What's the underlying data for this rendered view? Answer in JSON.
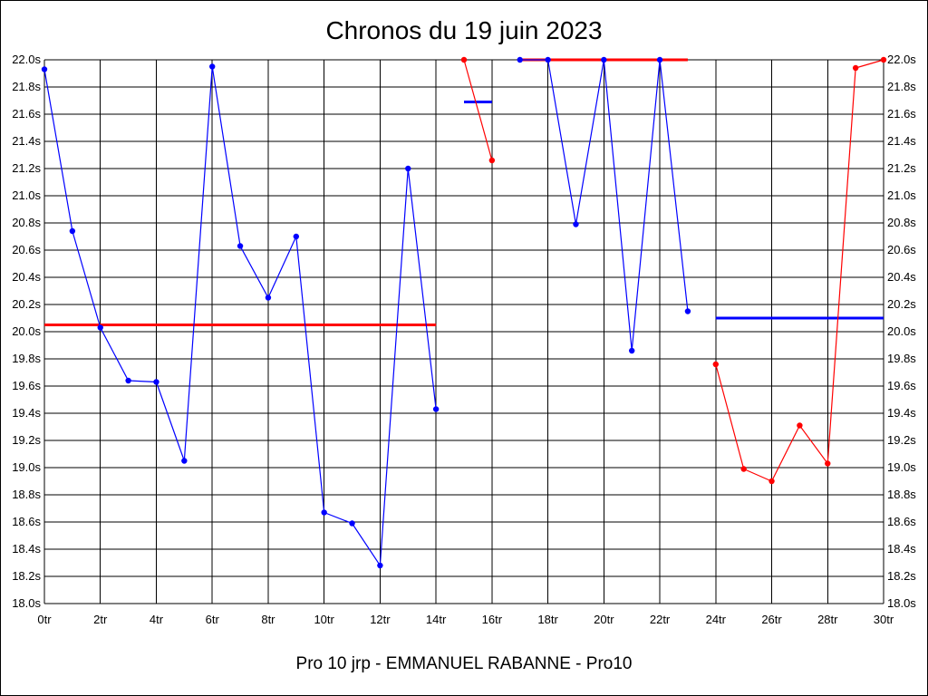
{
  "chart_data": {
    "type": "line",
    "title": "Chronos du 19 juin 2023",
    "subtitle": "Pro 10 jrp - EMMANUEL RABANNE - Pro10",
    "xlim": [
      0,
      30
    ],
    "ylim": [
      18.0,
      22.0
    ],
    "x_ticks": [
      0,
      2,
      4,
      6,
      8,
      10,
      12,
      14,
      16,
      18,
      20,
      22,
      24,
      26,
      28,
      30
    ],
    "x_tick_labels": [
      "0tr",
      "2tr",
      "4tr",
      "6tr",
      "8tr",
      "10tr",
      "12tr",
      "14tr",
      "16tr",
      "18tr",
      "20tr",
      "22tr",
      "24tr",
      "26tr",
      "28tr",
      "30tr"
    ],
    "y_ticks": [
      18.0,
      18.2,
      18.4,
      18.6,
      18.8,
      19.0,
      19.2,
      19.4,
      19.6,
      19.8,
      20.0,
      20.2,
      20.4,
      20.6,
      20.8,
      21.0,
      21.2,
      21.4,
      21.6,
      21.8,
      22.0
    ],
    "y_tick_labels": [
      "18.0s",
      "18.2s",
      "18.4s",
      "18.6s",
      "18.8s",
      "19.0s",
      "19.2s",
      "19.4s",
      "19.6s",
      "19.8s",
      "20.0s",
      "20.2s",
      "20.4s",
      "20.6s",
      "20.8s",
      "21.0s",
      "21.2s",
      "21.4s",
      "21.6s",
      "21.8s",
      "22.0s"
    ],
    "grid": true,
    "series": [
      {
        "color": "#0000ff",
        "x": [
          0,
          1,
          2,
          3,
          4,
          5,
          6,
          7,
          8,
          9,
          10,
          11,
          12,
          13,
          14
        ],
        "y": [
          21.93,
          20.74,
          20.03,
          19.64,
          19.63,
          19.05,
          21.95,
          20.63,
          20.25,
          20.7,
          18.67,
          18.59,
          18.28,
          21.2,
          19.43
        ]
      },
      {
        "color": "#ff0000",
        "x": [
          15,
          16
        ],
        "y": [
          22.0,
          21.26
        ]
      },
      {
        "color": "#0000ff",
        "x": [
          17,
          18,
          19,
          20,
          21,
          22,
          23
        ],
        "y": [
          22.0,
          22.0,
          20.79,
          22.0,
          19.86,
          22.0,
          20.15
        ]
      },
      {
        "color": "#ff0000",
        "x": [
          24,
          25,
          26,
          27,
          28,
          29,
          30
        ],
        "y": [
          19.76,
          18.99,
          18.9,
          19.31,
          19.03,
          21.94,
          22.0
        ]
      }
    ],
    "reference_lines": [
      {
        "color": "#ff0000",
        "x0": 0,
        "x1": 14,
        "y": 20.05
      },
      {
        "color": "#0000ff",
        "x0": 15,
        "x1": 16,
        "y": 21.69
      },
      {
        "color": "#ff0000",
        "x0": 17,
        "x1": 23,
        "y": 22.0
      },
      {
        "color": "#0000ff",
        "x0": 24,
        "x1": 30,
        "y": 20.1
      }
    ]
  }
}
